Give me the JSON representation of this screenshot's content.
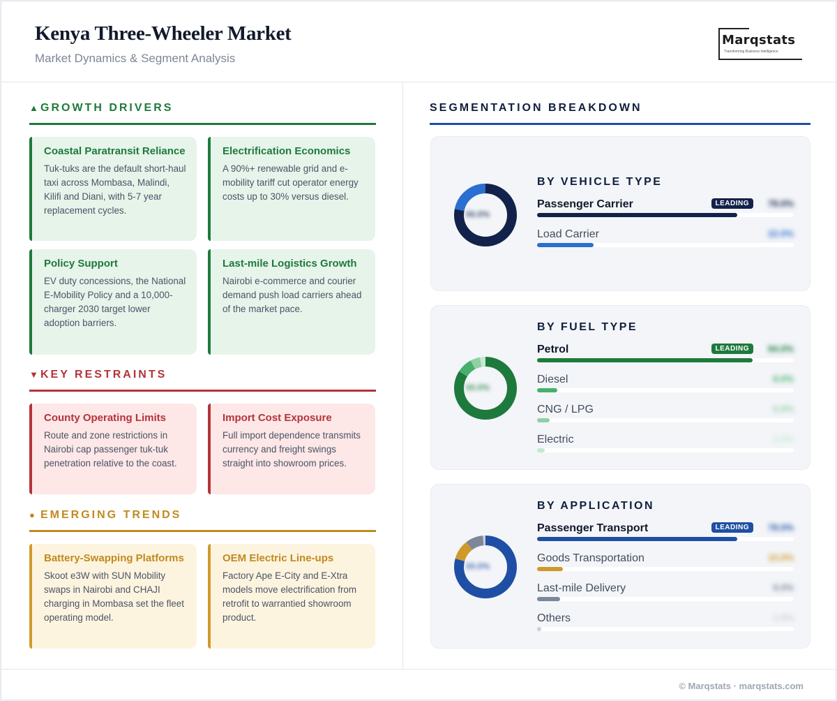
{
  "header": {
    "title": "Kenya Three-Wheeler Market",
    "subtitle": "Market Dynamics & Segment Analysis",
    "logo_text": "Marqstats",
    "logo_tagline": "Transforming Business Intelligence"
  },
  "growth": {
    "icon": "triangle-up-icon",
    "heading": "GROWTH DRIVERS",
    "color": "#1e7a3c",
    "cards": [
      {
        "title": "Coastal Paratransit Reliance",
        "text": "Tuk-tuks are the default short-haul taxi across Mombasa, Malindi, Kilifi and Diani, with 5-7 year replacement cycles."
      },
      {
        "title": "Electrification Economics",
        "text": "A 90%+ renewable grid and e-mobility tariff cut operator energy costs up to 30% versus diesel."
      },
      {
        "title": "Policy Support",
        "text": "EV duty concessions, the National E-Mobility Policy and a 10,000-charger 2030 target lower adoption barriers."
      },
      {
        "title": "Last-mile Logistics Growth",
        "text": "Nairobi e-commerce and courier demand push load carriers ahead of the market pace."
      }
    ]
  },
  "restraints": {
    "icon": "triangle-down-icon",
    "heading": "KEY RESTRAINTS",
    "color": "#b3343a",
    "cards": [
      {
        "title": "County Operating Limits",
        "text": "Route and zone restrictions in Nairobi cap passenger tuk-tuk penetration relative to the coast."
      },
      {
        "title": "Import Cost Exposure",
        "text": "Full import dependence transmits currency and freight swings straight into showroom prices."
      }
    ]
  },
  "trends": {
    "icon": "circle-icon",
    "heading": "EMERGING TRENDS",
    "color": "#c08a1e",
    "cards": [
      {
        "title": "Battery-Swapping Platforms",
        "text": "Skoot e3W with SUN Mobility swaps in Nairobi and CHAJI charging in Mombasa set the fleet operating model."
      },
      {
        "title": "OEM Electric Line-ups",
        "text": "Factory Ape E-City and E-Xtra models move electrification from retrofit to warrantied showroom product."
      }
    ]
  },
  "segmentation": {
    "heading": "SEGMENTATION BREAKDOWN",
    "badge": "LEADING",
    "panels": [
      {
        "title": "BY VEHICLE TYPE",
        "center": "00.0%",
        "segments": [
          {
            "label": "Passenger Carrier",
            "share": 78.0,
            "color": "#13224a",
            "value": "78.0%"
          },
          {
            "label": "Load Carrier",
            "share": 22.0,
            "color": "#2a6fd1",
            "value": "22.0%"
          }
        ]
      },
      {
        "title": "BY FUEL TYPE",
        "center": "00.0%",
        "segments": [
          {
            "label": "Petrol",
            "share": 84.0,
            "color": "#1e7a3c",
            "value": "84.0%"
          },
          {
            "label": "Diesel",
            "share": 8.0,
            "color": "#46b06c",
            "value": "8.0%"
          },
          {
            "label": "CNG / LPG",
            "share": 5.0,
            "color": "#8fd0a4",
            "value": "5.0%"
          },
          {
            "label": "Electric",
            "share": 3.0,
            "color": "#c6e8d1",
            "value": "3.0%"
          }
        ]
      },
      {
        "title": "BY APPLICATION",
        "center": "00.0%",
        "segments": [
          {
            "label": "Passenger Transport",
            "share": 78.0,
            "color": "#1f4fa5",
            "value": "78.0%"
          },
          {
            "label": "Goods Transportation",
            "share": 10.0,
            "color": "#d09a2a",
            "value": "10.0%"
          },
          {
            "label": "Last-mile Delivery",
            "share": 9.0,
            "color": "#7c8799",
            "value": "9.0%"
          },
          {
            "label": "Others",
            "share": 1.5,
            "color": "#c9ced7",
            "value": "1.5%"
          }
        ]
      }
    ]
  },
  "footer": {
    "text": "© Marqstats · marqstats.com"
  }
}
